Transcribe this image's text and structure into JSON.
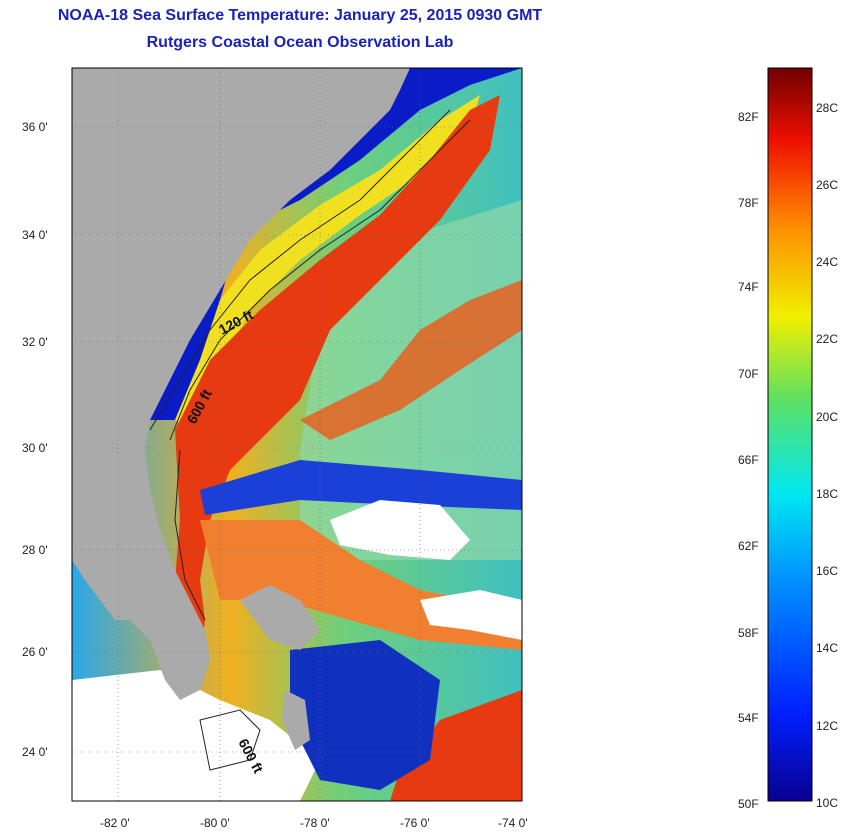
{
  "header": {
    "title": "NOAA-18 Sea Surface Temperature:  January 25, 2015 0930 GMT",
    "subtitle": "Rutgers Coastal Ocean Observation Lab"
  },
  "map": {
    "lat_ticks": [
      "36 0'",
      "34 0'",
      "32 0'",
      "30 0'",
      "28 0'",
      "26 0'",
      "24 0'"
    ],
    "lon_ticks": [
      "-82 0'",
      "-80 0'",
      "-78 0'",
      "-76 0'",
      "-74 0'"
    ],
    "contour_labels": [
      "120 ft",
      "600 ft",
      "600 ft"
    ],
    "colors": {
      "land": "#aaaaaa",
      "cloud": "#ffffff",
      "gulf_stream": "#e83a10",
      "cold_shelf": "#0a1cc8"
    }
  },
  "colorbar": {
    "fahrenheit_labels": [
      "82F",
      "78F",
      "74F",
      "70F",
      "66F",
      "62F",
      "58F",
      "54F",
      "50F"
    ],
    "celsius_labels": [
      "28C",
      "26C",
      "24C",
      "22C",
      "20C",
      "18C",
      "16C",
      "14C",
      "12C",
      "10C"
    ],
    "range_c": [
      10,
      29
    ]
  }
}
